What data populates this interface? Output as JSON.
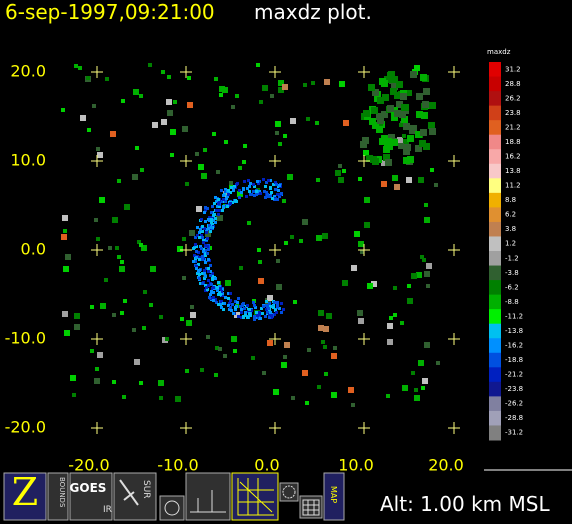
{
  "header": {
    "timestamp": "6-sep-1997,09:21:00",
    "title": "maxdz plot."
  },
  "plot": {
    "y_ticks": [
      "20.0",
      "10.0",
      "0.0",
      "-10.0",
      "-20.0"
    ],
    "x_ticks": [
      "-20.0",
      "-10.0",
      "0.0",
      "10.0",
      "20.0"
    ]
  },
  "colorbar": {
    "title": "maxdz",
    "levels": [
      {
        "label": "31.2",
        "color": "#e00000"
      },
      {
        "label": "28.8",
        "color": "#c80000"
      },
      {
        "label": "26.2",
        "color": "#b01010"
      },
      {
        "label": "23.8",
        "color": "#d04018"
      },
      {
        "label": "21.2",
        "color": "#e06020"
      },
      {
        "label": "18.8",
        "color": "#f08888"
      },
      {
        "label": "16.2",
        "color": "#f8a8a8"
      },
      {
        "label": "13.8",
        "color": "#f8c8c8"
      },
      {
        "label": "11.2",
        "color": "#ffff80"
      },
      {
        "label": "8.8",
        "color": "#f0b000"
      },
      {
        "label": "6.2",
        "color": "#e09030"
      },
      {
        "label": "3.8",
        "color": "#c08050"
      },
      {
        "label": "1.2",
        "color": "#c0c0c0"
      },
      {
        "label": "-1.2",
        "color": "#a0a0a0"
      },
      {
        "label": "-3.8",
        "color": "#306030"
      },
      {
        "label": "-6.2",
        "color": "#008000"
      },
      {
        "label": "-8.8",
        "color": "#00b000"
      },
      {
        "label": "-11.2",
        "color": "#00f000"
      },
      {
        "label": "-13.8",
        "color": "#00c0f0"
      },
      {
        "label": "-16.2",
        "color": "#0090ff"
      },
      {
        "label": "-18.8",
        "color": "#0050e0"
      },
      {
        "label": "-21.2",
        "color": "#0020c0"
      },
      {
        "label": "-23.8",
        "color": "#101890"
      },
      {
        "label": "-26.2",
        "color": "#8080a0"
      },
      {
        "label": "-28.8",
        "color": "#a0a0b8"
      },
      {
        "label": "-31.2",
        "color": "#808080"
      }
    ]
  },
  "toolbar": {
    "buttons": [
      "BOUNDS",
      "GOES",
      "IR",
      "SUR",
      "MAP"
    ]
  },
  "footer": {
    "altitude": "Alt: 1.00 km MSL"
  }
}
